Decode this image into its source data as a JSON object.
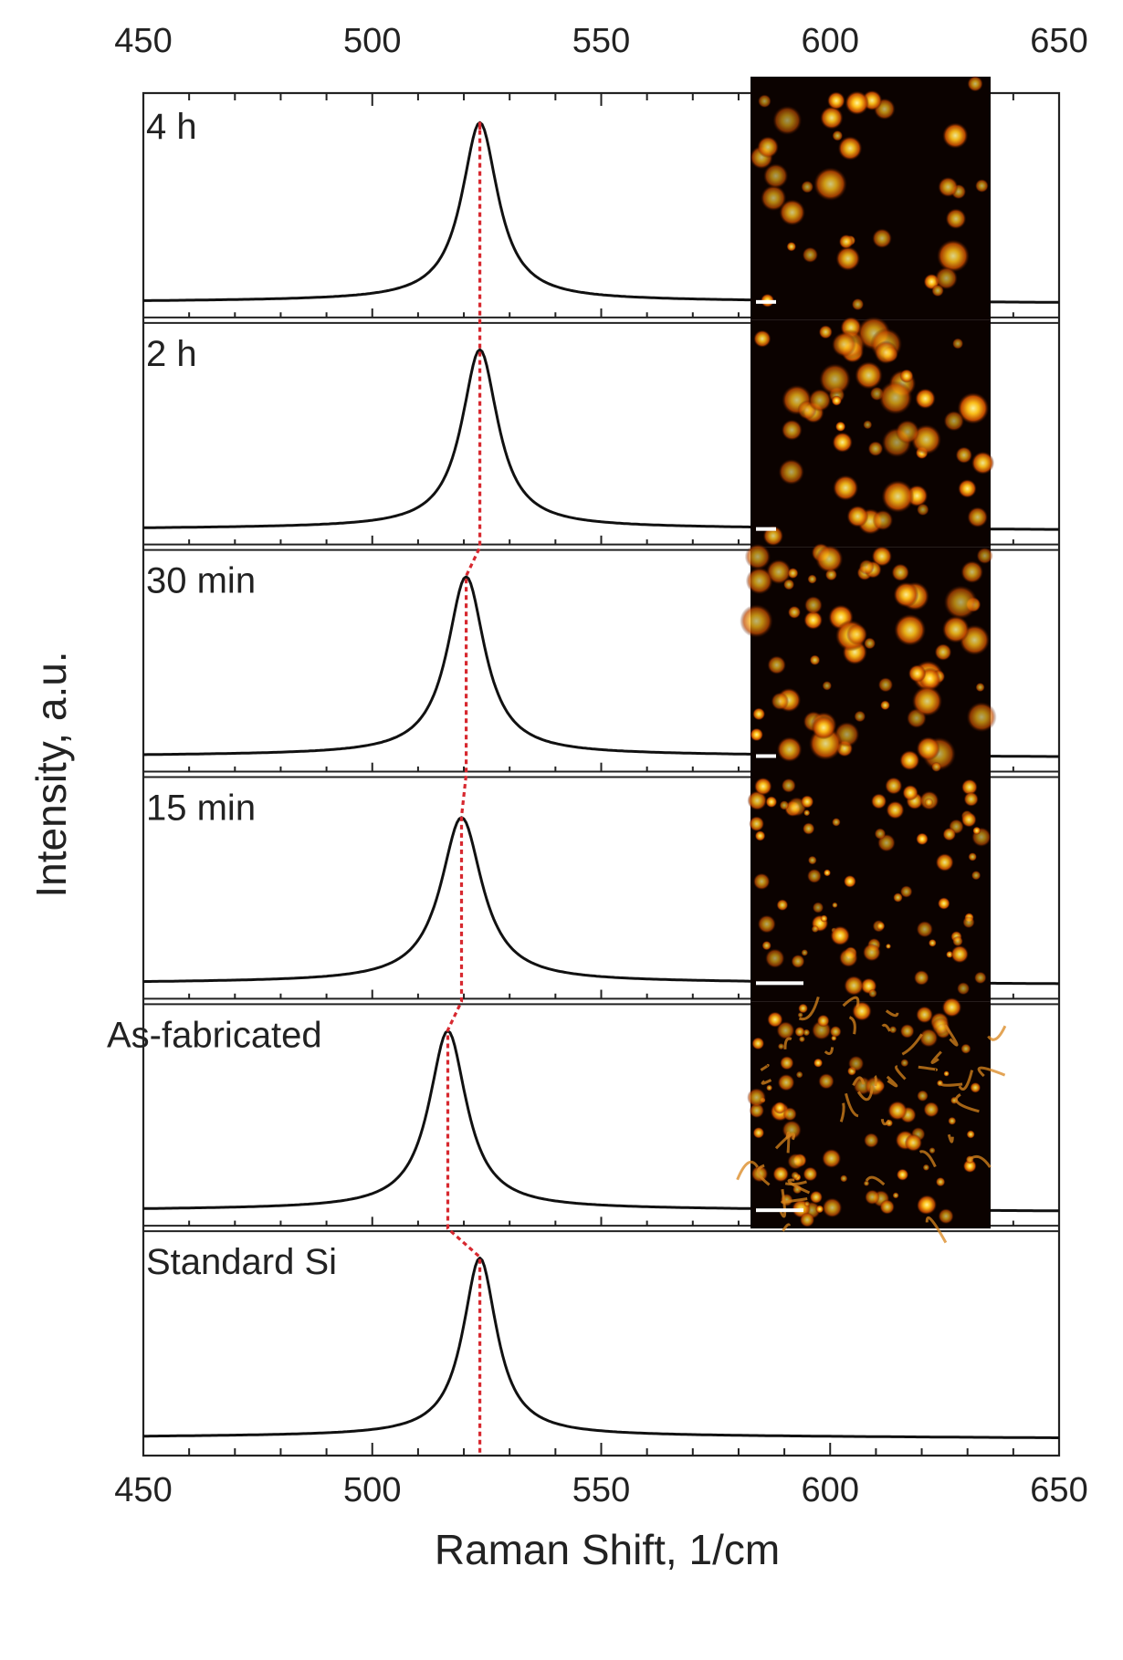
{
  "chart_data": {
    "type": "line",
    "title": "",
    "xlabel": "Raman Shift, 1/cm",
    "ylabel": "Intensity, a.u.",
    "xlim": [
      450,
      650
    ],
    "x_ticks": [
      450,
      500,
      550,
      600,
      650
    ],
    "x_minor_step": 10,
    "grid": false,
    "legend": "none",
    "panels": [
      {
        "label": "4 h",
        "peak_center": 523.5,
        "peak_width": 4.8,
        "peak_height": 0.78,
        "baseline": 0.02
      },
      {
        "label": "2 h",
        "peak_center": 523.5,
        "peak_width": 4.8,
        "peak_height": 0.78,
        "baseline": 0.02
      },
      {
        "label": "30 min",
        "peak_center": 520.5,
        "peak_width": 5.0,
        "peak_height": 0.78,
        "baseline": 0.02
      },
      {
        "label": "15 min",
        "peak_center": 519.5,
        "peak_width": 5.5,
        "peak_height": 0.72,
        "baseline": 0.02
      },
      {
        "label": "As-fabricated",
        "peak_center": 516.5,
        "peak_width": 5.0,
        "peak_height": 0.78,
        "baseline": 0.02
      },
      {
        "label": "Standard Si",
        "peak_center": 523.5,
        "peak_width": 4.5,
        "peak_height": 0.78,
        "baseline": 0.02
      }
    ],
    "reference_line": {
      "color": "#d7282f",
      "description": "dotted peak-position guide"
    },
    "inset_images": {
      "count": 5,
      "description": "dark micrographs with bright orange-yellow particles"
    }
  }
}
